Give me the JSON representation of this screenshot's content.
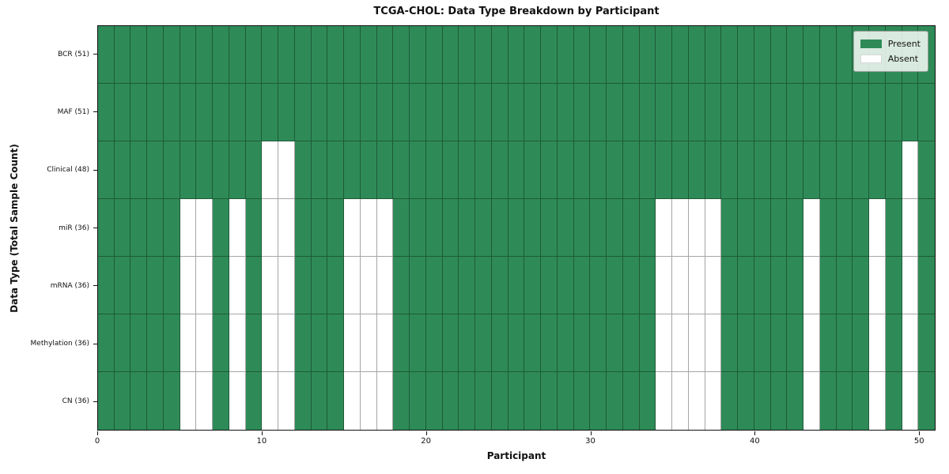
{
  "title": "TCGA-CHOL: Data Type Breakdown by Participant",
  "chart_data": {
    "type": "heatmap",
    "title": "TCGA-CHOL: Data Type Breakdown by Participant",
    "xlabel": "Participant",
    "ylabel": "Data Type (Total Sample Count)",
    "n_participants": 51,
    "x_range": [
      0,
      51
    ],
    "x_ticks": [
      0,
      10,
      20,
      30,
      40,
      50
    ],
    "grid": true,
    "legend_position": "upper right",
    "legend": [
      {
        "label": "Present",
        "color": "#2e8b57"
      },
      {
        "label": "Absent",
        "color": "#ffffff"
      }
    ],
    "colors": {
      "present": "#2e8b57",
      "absent": "#ffffff",
      "gridline": "rgba(0,0,0,0.35)"
    },
    "rows": [
      {
        "label": "BCR (51)",
        "data_type": "BCR",
        "present_count": 51,
        "absent_participants": []
      },
      {
        "label": "MAF (51)",
        "data_type": "MAF",
        "present_count": 51,
        "absent_participants": []
      },
      {
        "label": "Clinical (48)",
        "data_type": "Clinical",
        "present_count": 48,
        "absent_participants": [
          10,
          11,
          49
        ]
      },
      {
        "label": "miR (36)",
        "data_type": "miR",
        "present_count": 36,
        "absent_participants": [
          5,
          6,
          8,
          10,
          11,
          15,
          16,
          17,
          34,
          35,
          36,
          37,
          43,
          47,
          49
        ]
      },
      {
        "label": "mRNA (36)",
        "data_type": "mRNA",
        "present_count": 36,
        "absent_participants": [
          5,
          6,
          8,
          10,
          11,
          15,
          16,
          17,
          34,
          35,
          36,
          37,
          43,
          47,
          49
        ]
      },
      {
        "label": "Methylation (36)",
        "data_type": "Methylation",
        "present_count": 36,
        "absent_participants": [
          5,
          6,
          8,
          10,
          11,
          15,
          16,
          17,
          34,
          35,
          36,
          37,
          43,
          47,
          49
        ]
      },
      {
        "label": "CN (36)",
        "data_type": "CN",
        "present_count": 36,
        "absent_participants": [
          5,
          6,
          8,
          10,
          11,
          15,
          16,
          17,
          34,
          35,
          36,
          37,
          43,
          47,
          49
        ]
      }
    ]
  }
}
